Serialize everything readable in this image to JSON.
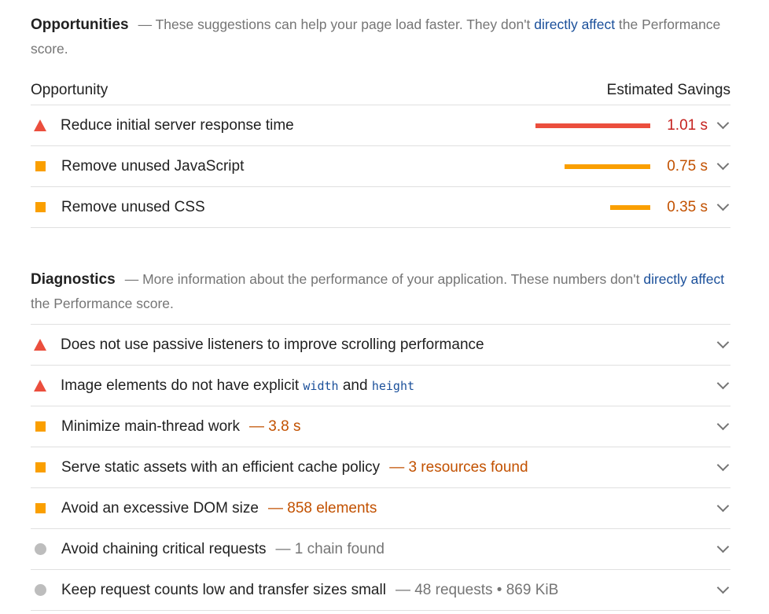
{
  "opportunities": {
    "title": "Opportunities",
    "desc_before": "— These suggestions can help your page load faster. They don't ",
    "desc_link": "directly affect",
    "desc_after": " the Performance score.",
    "col_left": "Opportunity",
    "col_right": "Estimated Savings",
    "items": [
      {
        "label": "Reduce initial server response time",
        "value": "1.01 s",
        "status": "fail",
        "savings_fraction": 1.0
      },
      {
        "label": "Remove unused JavaScript",
        "value": "0.75 s",
        "status": "average",
        "savings_fraction": 0.74
      },
      {
        "label": "Remove unused CSS",
        "value": "0.35 s",
        "status": "average",
        "savings_fraction": 0.35
      }
    ]
  },
  "diagnostics": {
    "title": "Diagnostics",
    "desc_before": "— More information about the performance of your application. These numbers don't ",
    "desc_link": "directly affect",
    "desc_after": " the Performance score.",
    "items": [
      {
        "label": "Does not use passive listeners to improve scrolling performance",
        "status": "fail"
      },
      {
        "label_before": "Image elements do not have explicit ",
        "code1": "width",
        "label_mid": " and ",
        "code2": "height",
        "status": "fail"
      },
      {
        "label": "Minimize main-thread work",
        "extra": "— 3.8 s",
        "status": "average"
      },
      {
        "label": "Serve static assets with an efficient cache policy",
        "extra": "— 3 resources found",
        "status": "average"
      },
      {
        "label": "Avoid an excessive DOM size",
        "extra": "— 858 elements",
        "status": "average"
      },
      {
        "label": "Avoid chaining critical requests",
        "extra": "— 1 chain found",
        "status": "info"
      },
      {
        "label": "Keep request counts low and transfer sizes small",
        "extra": "— 48 requests • 869 KiB",
        "status": "info"
      }
    ]
  },
  "colors": {
    "fail": "#eb4e3d",
    "average": "#fa9f00",
    "info": "#bdbdbd",
    "link": "#1a4f9a"
  }
}
